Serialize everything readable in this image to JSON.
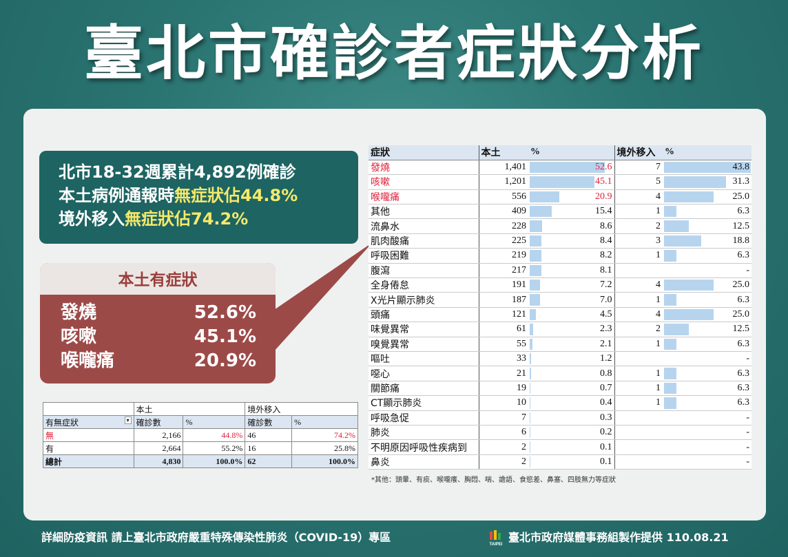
{
  "title": "臺北市確診者症狀分析",
  "summary": {
    "line1": "北市18-32週累計4,892例確診",
    "line2_prefix": "本土病例通報時",
    "line2_highlight": "無症狀佔44.8%",
    "line3_prefix": "境外移入",
    "line3_highlight": "無症狀佔74.2%"
  },
  "local_symptoms": {
    "heading": "本土有症狀",
    "items": [
      {
        "name": "發燒",
        "pct": "52.6%"
      },
      {
        "name": "咳嗽",
        "pct": "45.1%"
      },
      {
        "name": "喉嚨痛",
        "pct": "20.9%"
      }
    ]
  },
  "small_table": {
    "group_local": "本土",
    "group_imported": "境外移入",
    "col_symptom": "有無症狀",
    "col_count": "確診數",
    "col_pct": "%",
    "rows": [
      {
        "label": "無",
        "local_n": "2,166",
        "local_pct": "44.8%",
        "imp_n": "46",
        "imp_pct": "74.2%"
      },
      {
        "label": "有",
        "local_n": "2,664",
        "local_pct": "55.2%",
        "imp_n": "16",
        "imp_pct": "25.8%"
      }
    ],
    "total": {
      "label": "總計",
      "local_n": "4,830",
      "local_pct": "100.0%",
      "imp_n": "62",
      "imp_pct": "100.0%"
    }
  },
  "big_table": {
    "col_symptom": "症狀",
    "col_local": "本土",
    "col_pct": "%",
    "col_imported": "境外移入",
    "col_imp_pct": "%",
    "rows": [
      {
        "name": "發燒",
        "n": "1,401",
        "pct": 52.6,
        "pct_label": "52.6",
        "imp_n": "7",
        "imp_pct": 43.8,
        "imp_label": "43.8",
        "red": true
      },
      {
        "name": "咳嗽",
        "n": "1,201",
        "pct": 45.1,
        "pct_label": "45.1",
        "imp_n": "5",
        "imp_pct": 31.3,
        "imp_label": "31.3",
        "red": true
      },
      {
        "name": "喉嚨痛",
        "n": "556",
        "pct": 20.9,
        "pct_label": "20.9",
        "imp_n": "4",
        "imp_pct": 25.0,
        "imp_label": "25.0",
        "red": true
      },
      {
        "name": "其他",
        "n": "409",
        "pct": 15.4,
        "pct_label": "15.4",
        "imp_n": "1",
        "imp_pct": 6.3,
        "imp_label": "6.3"
      },
      {
        "name": "流鼻水",
        "n": "228",
        "pct": 8.6,
        "pct_label": "8.6",
        "imp_n": "2",
        "imp_pct": 12.5,
        "imp_label": "12.5"
      },
      {
        "name": "肌肉酸痛",
        "n": "225",
        "pct": 8.4,
        "pct_label": "8.4",
        "imp_n": "3",
        "imp_pct": 18.8,
        "imp_label": "18.8"
      },
      {
        "name": "呼吸困難",
        "n": "219",
        "pct": 8.2,
        "pct_label": "8.2",
        "imp_n": "1",
        "imp_pct": 6.3,
        "imp_label": "6.3"
      },
      {
        "name": "腹瀉",
        "n": "217",
        "pct": 8.1,
        "pct_label": "8.1",
        "imp_n": "",
        "imp_pct": 0,
        "imp_label": "-"
      },
      {
        "name": "全身倦怠",
        "n": "191",
        "pct": 7.2,
        "pct_label": "7.2",
        "imp_n": "4",
        "imp_pct": 25.0,
        "imp_label": "25.0"
      },
      {
        "name": "X光片顯示肺炎",
        "n": "187",
        "pct": 7.0,
        "pct_label": "7.0",
        "imp_n": "1",
        "imp_pct": 6.3,
        "imp_label": "6.3"
      },
      {
        "name": "頭痛",
        "n": "121",
        "pct": 4.5,
        "pct_label": "4.5",
        "imp_n": "4",
        "imp_pct": 25.0,
        "imp_label": "25.0"
      },
      {
        "name": "味覺異常",
        "n": "61",
        "pct": 2.3,
        "pct_label": "2.3",
        "imp_n": "2",
        "imp_pct": 12.5,
        "imp_label": "12.5"
      },
      {
        "name": "嗅覺異常",
        "n": "55",
        "pct": 2.1,
        "pct_label": "2.1",
        "imp_n": "1",
        "imp_pct": 6.3,
        "imp_label": "6.3"
      },
      {
        "name": "嘔吐",
        "n": "33",
        "pct": 1.2,
        "pct_label": "1.2",
        "imp_n": "",
        "imp_pct": 0,
        "imp_label": "-"
      },
      {
        "name": "噁心",
        "n": "21",
        "pct": 0.8,
        "pct_label": "0.8",
        "imp_n": "1",
        "imp_pct": 6.3,
        "imp_label": "6.3"
      },
      {
        "name": "關節痛",
        "n": "19",
        "pct": 0.7,
        "pct_label": "0.7",
        "imp_n": "1",
        "imp_pct": 6.3,
        "imp_label": "6.3"
      },
      {
        "name": "CT顯示肺炎",
        "n": "10",
        "pct": 0.4,
        "pct_label": "0.4",
        "imp_n": "1",
        "imp_pct": 6.3,
        "imp_label": "6.3"
      },
      {
        "name": "呼吸急促",
        "n": "7",
        "pct": 0.3,
        "pct_label": "0.3",
        "imp_n": "",
        "imp_pct": 0,
        "imp_label": "-"
      },
      {
        "name": "肺炎",
        "n": "6",
        "pct": 0.2,
        "pct_label": "0.2",
        "imp_n": "",
        "imp_pct": 0,
        "imp_label": "-"
      },
      {
        "name": "不明原因呼吸性疾病到",
        "n": "2",
        "pct": 0.1,
        "pct_label": "0.1",
        "imp_n": "",
        "imp_pct": 0,
        "imp_label": "-"
      },
      {
        "name": "鼻炎",
        "n": "2",
        "pct": 0.1,
        "pct_label": "0.1",
        "imp_n": "",
        "imp_pct": 0,
        "imp_label": "-"
      }
    ],
    "note": "*其他：頭暈、有痰、喉嚨癢、胸悶、喘、譫語、食慾差、鼻塞、四肢無力等症狀"
  },
  "footer": {
    "left": "詳細防疫資訊 請上臺北市政府嚴重特殊傳染性肺炎（COVID-19）專區",
    "right": "臺北市政府媒體事務組製作提供 110.08.21",
    "logo_text": "TAIPEI"
  },
  "colors": {
    "accent_teal": "#1d6462",
    "highlight_yellow": "#f5e96a",
    "symptom_red": "#9c4a48",
    "bar_blue": "#b6d4ee",
    "text_red": "#e0203a"
  }
}
